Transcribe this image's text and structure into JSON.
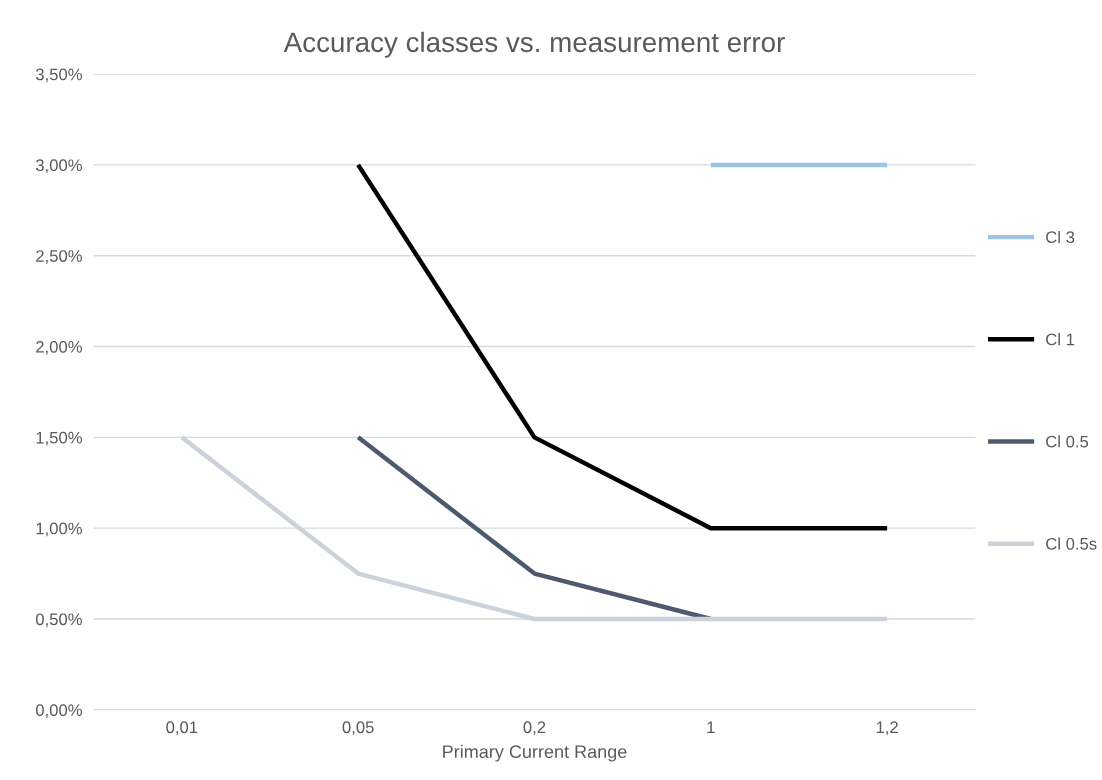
{
  "chart_data": {
    "type": "line",
    "title": "Accuracy classes vs. measurement error",
    "xlabel": "Primary Current Range",
    "categories": [
      "0,01",
      "0,05",
      "0,2",
      "1",
      "1,2"
    ],
    "series": [
      {
        "name": "Cl 3",
        "color": "#9dc3e6",
        "values": [
          null,
          null,
          null,
          3,
          3
        ]
      },
      {
        "name": "Cl 1",
        "color": "#000000",
        "values": [
          null,
          3,
          1.5,
          1,
          1
        ]
      },
      {
        "name": "Cl 0.5",
        "color": "#4d5a6e",
        "values": [
          null,
          1.5,
          0.75,
          0.5,
          null
        ]
      },
      {
        "name": "Cl 0.5s",
        "color": "#ccd2dc",
        "values": [
          1.5,
          0.75,
          0.5,
          0.5,
          0.5
        ]
      }
    ],
    "ylim": [
      0,
      3.5
    ],
    "yticks": [
      {
        "value": 0,
        "label": "0,00%"
      },
      {
        "value": 0.5,
        "label": "0,50%"
      },
      {
        "value": 1,
        "label": "1,00%"
      },
      {
        "value": 1.5,
        "label": "1,50%"
      },
      {
        "value": 2,
        "label": "2,00%"
      },
      {
        "value": 2.5,
        "label": "2,50%"
      },
      {
        "value": 3,
        "label": "3,00%"
      },
      {
        "value": 3.5,
        "label": "3,50%"
      }
    ],
    "grid": "y",
    "legend": "right",
    "marker": "none",
    "line_style": "solid"
  }
}
